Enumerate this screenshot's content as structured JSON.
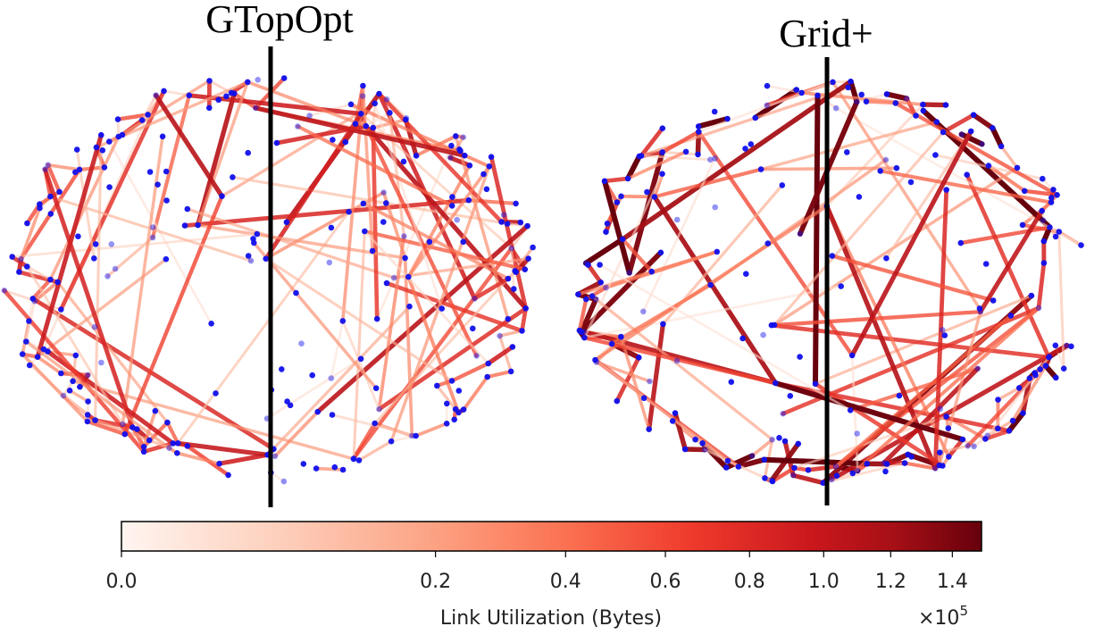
{
  "panels": [
    {
      "title": "GTopOpt"
    },
    {
      "title": "Grid+"
    }
  ],
  "colorbar": {
    "label": "Link Utilization (Bytes)",
    "multiplier_base": "×10",
    "multiplier_exp": "5",
    "ticks": [
      "0.0",
      "0.2",
      "0.4",
      "0.6",
      "0.8",
      "1.0",
      "1.2",
      "1.4"
    ],
    "scale": "power (gamma ≈ 0.5)",
    "colormap": [
      "#fff5f0",
      "#fcbba1",
      "#fc9272",
      "#fb6a4a",
      "#ef3b2c",
      "#cb181d",
      "#a50f15",
      "#67000d"
    ]
  },
  "colors": {
    "node": "#1010ee",
    "divider": "#000000"
  }
}
